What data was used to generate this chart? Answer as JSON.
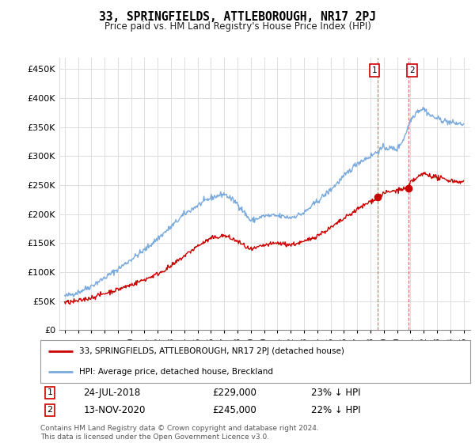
{
  "title": "33, SPRINGFIELDS, ATTLEBOROUGH, NR17 2PJ",
  "subtitle": "Price paid vs. HM Land Registry's House Price Index (HPI)",
  "ylabel_ticks": [
    "£0",
    "£50K",
    "£100K",
    "£150K",
    "£200K",
    "£250K",
    "£300K",
    "£350K",
    "£400K",
    "£450K"
  ],
  "ytick_values": [
    0,
    50000,
    100000,
    150000,
    200000,
    250000,
    300000,
    350000,
    400000,
    450000
  ],
  "ylim": [
    0,
    470000
  ],
  "year_start": 1995,
  "year_end": 2025,
  "hpi_color": "#7aaadd",
  "price_color": "#cc0000",
  "marker1_date_label": "24-JUL-2018",
  "marker1_price": 229000,
  "marker1_pct": "23% ↓ HPI",
  "marker1_x": 2018.55,
  "marker2_date_label": "13-NOV-2020",
  "marker2_price": 245000,
  "marker2_pct": "22% ↓ HPI",
  "marker2_x": 2020.87,
  "legend_label_price": "33, SPRINGFIELDS, ATTLEBOROUGH, NR17 2PJ (detached house)",
  "legend_label_hpi": "HPI: Average price, detached house, Breckland",
  "footer": "Contains HM Land Registry data © Crown copyright and database right 2024.\nThis data is licensed under the Open Government Licence v3.0.",
  "vline_x1": 2018.55,
  "vline_x2": 2020.87,
  "background_color": "#ffffff",
  "grid_color": "#dddddd"
}
